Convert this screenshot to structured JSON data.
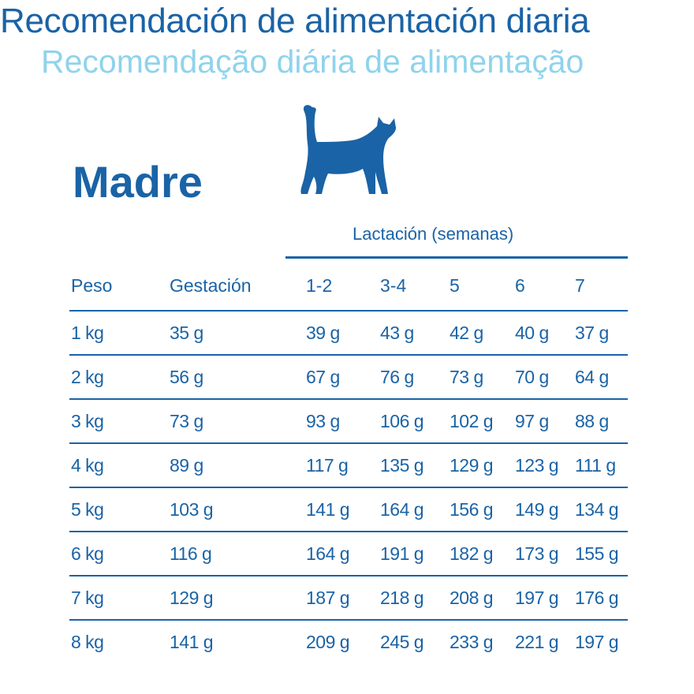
{
  "titles": {
    "spanish": "Recomendación de alimentación diaria",
    "portuguese": "Recomendação diária de alimentação"
  },
  "section": {
    "heading": "Madre",
    "icon": "cat-icon"
  },
  "table": {
    "group_header": "Lactación (semanas)",
    "columns": [
      "Peso",
      "Gestación",
      "1-2",
      "3-4",
      "5",
      "6",
      "7"
    ],
    "rows": [
      [
        "1 kg",
        "35 g",
        "39 g",
        "43 g",
        "42 g",
        "40 g",
        "37 g"
      ],
      [
        "2 kg",
        "56 g",
        "67 g",
        "76 g",
        "73 g",
        "70 g",
        "64 g"
      ],
      [
        "3 kg",
        "73 g",
        "93 g",
        "106 g",
        "102 g",
        "97 g",
        "88 g"
      ],
      [
        "4 kg",
        "89 g",
        "117 g",
        "135 g",
        "129 g",
        "123 g",
        "111 g"
      ],
      [
        "5 kg",
        "103 g",
        "141 g",
        "164 g",
        "156 g",
        "149 g",
        "134 g"
      ],
      [
        "6 kg",
        "116 g",
        "164 g",
        "191 g",
        "182 g",
        "173 g",
        "155 g"
      ],
      [
        "7 kg",
        "129 g",
        "187 g",
        "218 g",
        "208 g",
        "197 g",
        "176 g"
      ],
      [
        "8 kg",
        "141 g",
        "209 g",
        "245 g",
        "233 g",
        "221 g",
        "197 g"
      ]
    ]
  },
  "colors": {
    "primary_blue": "#1a63a6",
    "light_blue": "#8fd3ec"
  }
}
